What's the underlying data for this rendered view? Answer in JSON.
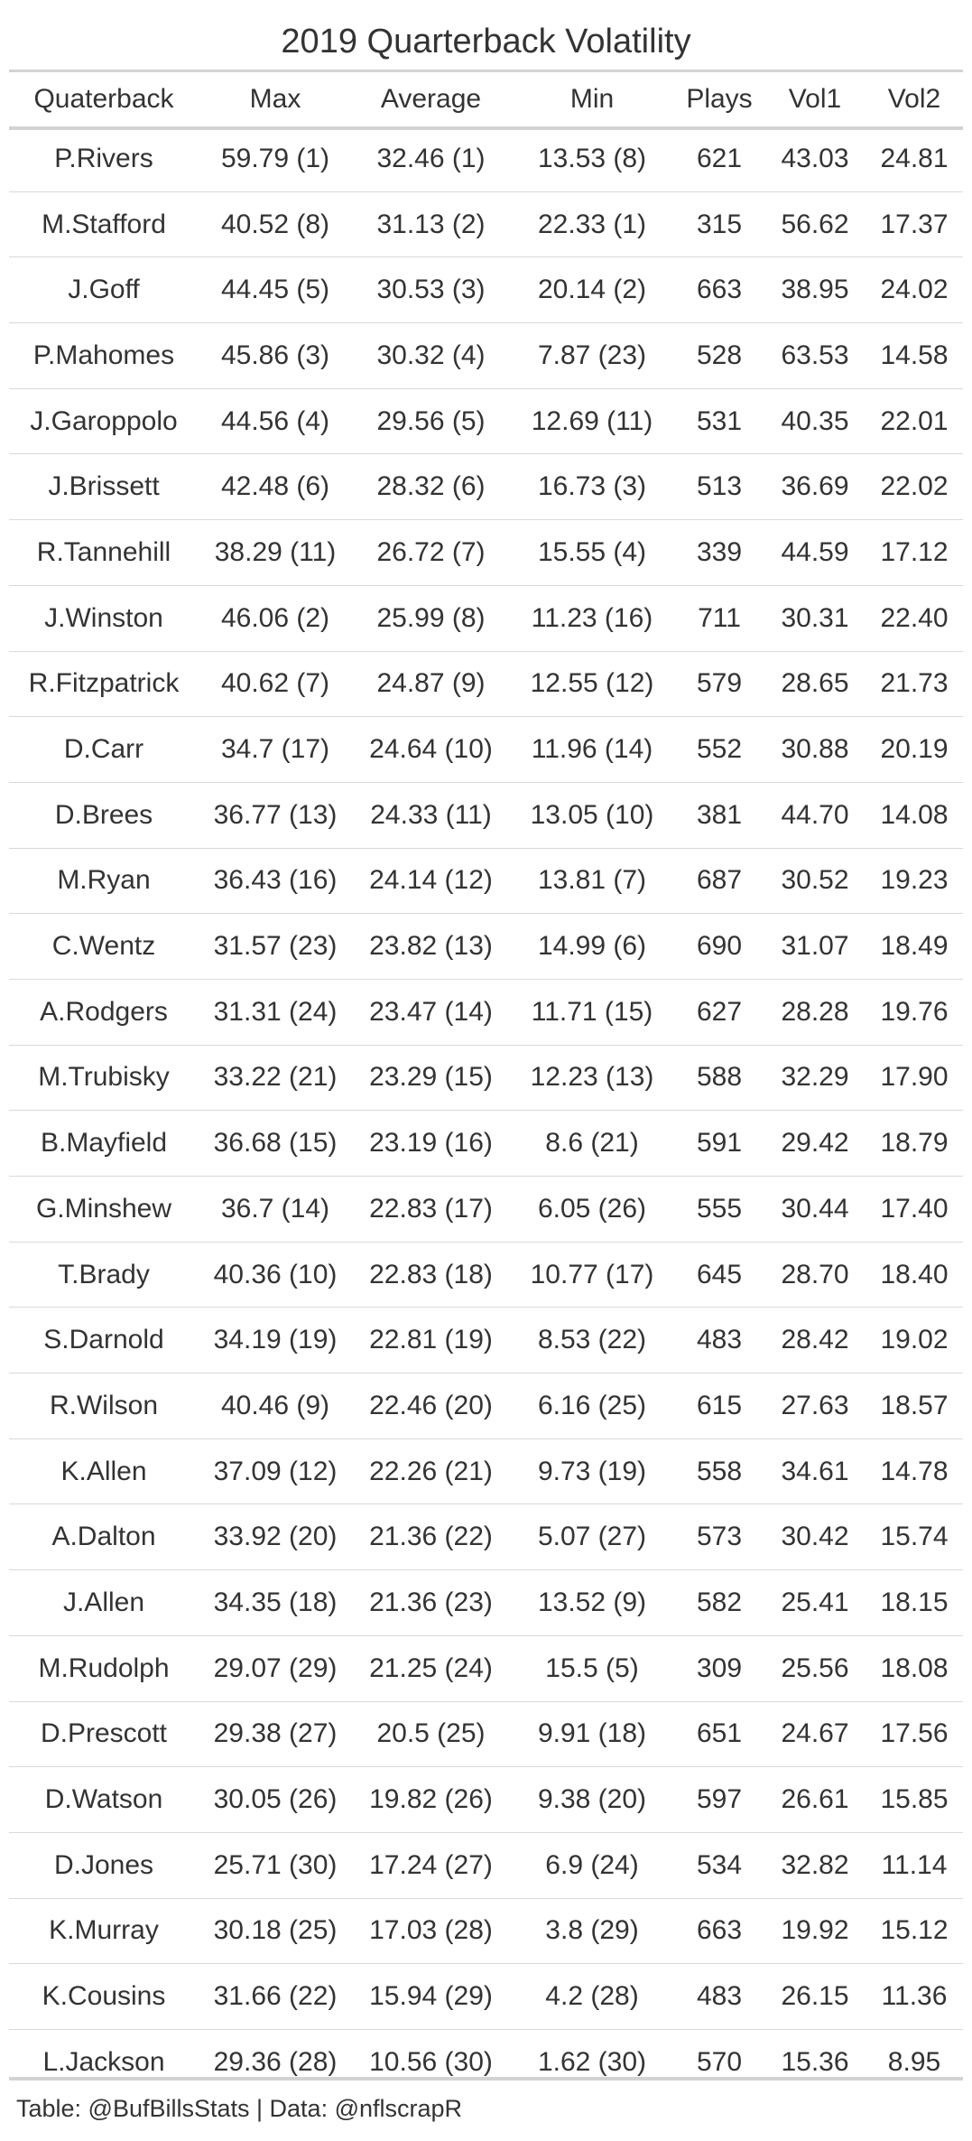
{
  "title": "2019 Quarterback Volatility",
  "columns": [
    "Quaterback",
    "Max",
    "Average",
    "Min",
    "Plays",
    "Vol1",
    "Vol2"
  ],
  "rows": [
    [
      "P.Rivers",
      "59.79 (1)",
      "32.46 (1)",
      "13.53 (8)",
      "621",
      "43.03",
      "24.81"
    ],
    [
      "M.Stafford",
      "40.52 (8)",
      "31.13 (2)",
      "22.33 (1)",
      "315",
      "56.62",
      "17.37"
    ],
    [
      "J.Goff",
      "44.45 (5)",
      "30.53 (3)",
      "20.14 (2)",
      "663",
      "38.95",
      "24.02"
    ],
    [
      "P.Mahomes",
      "45.86 (3)",
      "30.32 (4)",
      "7.87 (23)",
      "528",
      "63.53",
      "14.58"
    ],
    [
      "J.Garoppolo",
      "44.56 (4)",
      "29.56 (5)",
      "12.69 (11)",
      "531",
      "40.35",
      "22.01"
    ],
    [
      "J.Brissett",
      "42.48 (6)",
      "28.32 (6)",
      "16.73 (3)",
      "513",
      "36.69",
      "22.02"
    ],
    [
      "R.Tannehill",
      "38.29 (11)",
      "26.72 (7)",
      "15.55 (4)",
      "339",
      "44.59",
      "17.12"
    ],
    [
      "J.Winston",
      "46.06 (2)",
      "25.99 (8)",
      "11.23 (16)",
      "711",
      "30.31",
      "22.40"
    ],
    [
      "R.Fitzpatrick",
      "40.62 (7)",
      "24.87 (9)",
      "12.55 (12)",
      "579",
      "28.65",
      "21.73"
    ],
    [
      "D.Carr",
      "34.7 (17)",
      "24.64 (10)",
      "11.96 (14)",
      "552",
      "30.88",
      "20.19"
    ],
    [
      "D.Brees",
      "36.77 (13)",
      "24.33 (11)",
      "13.05 (10)",
      "381",
      "44.70",
      "14.08"
    ],
    [
      "M.Ryan",
      "36.43 (16)",
      "24.14 (12)",
      "13.81 (7)",
      "687",
      "30.52",
      "19.23"
    ],
    [
      "C.Wentz",
      "31.57 (23)",
      "23.82 (13)",
      "14.99 (6)",
      "690",
      "31.07",
      "18.49"
    ],
    [
      "A.Rodgers",
      "31.31 (24)",
      "23.47 (14)",
      "11.71 (15)",
      "627",
      "28.28",
      "19.76"
    ],
    [
      "M.Trubisky",
      "33.22 (21)",
      "23.29 (15)",
      "12.23 (13)",
      "588",
      "32.29",
      "17.90"
    ],
    [
      "B.Mayfield",
      "36.68 (15)",
      "23.19 (16)",
      "8.6 (21)",
      "591",
      "29.42",
      "18.79"
    ],
    [
      "G.Minshew",
      "36.7 (14)",
      "22.83 (17)",
      "6.05 (26)",
      "555",
      "30.44",
      "17.40"
    ],
    [
      "T.Brady",
      "40.36 (10)",
      "22.83 (18)",
      "10.77 (17)",
      "645",
      "28.70",
      "18.40"
    ],
    [
      "S.Darnold",
      "34.19 (19)",
      "22.81 (19)",
      "8.53 (22)",
      "483",
      "28.42",
      "19.02"
    ],
    [
      "R.Wilson",
      "40.46 (9)",
      "22.46 (20)",
      "6.16 (25)",
      "615",
      "27.63",
      "18.57"
    ],
    [
      "K.Allen",
      "37.09 (12)",
      "22.26 (21)",
      "9.73 (19)",
      "558",
      "34.61",
      "14.78"
    ],
    [
      "A.Dalton",
      "33.92 (20)",
      "21.36 (22)",
      "5.07 (27)",
      "573",
      "30.42",
      "15.74"
    ],
    [
      "J.Allen",
      "34.35 (18)",
      "21.36 (23)",
      "13.52 (9)",
      "582",
      "25.41",
      "18.15"
    ],
    [
      "M.Rudolph",
      "29.07 (29)",
      "21.25 (24)",
      "15.5 (5)",
      "309",
      "25.56",
      "18.08"
    ],
    [
      "D.Prescott",
      "29.38 (27)",
      "20.5 (25)",
      "9.91 (18)",
      "651",
      "24.67",
      "17.56"
    ],
    [
      "D.Watson",
      "30.05 (26)",
      "19.82 (26)",
      "9.38 (20)",
      "597",
      "26.61",
      "15.85"
    ],
    [
      "D.Jones",
      "25.71 (30)",
      "17.24 (27)",
      "6.9 (24)",
      "534",
      "32.82",
      "11.14"
    ],
    [
      "K.Murray",
      "30.18 (25)",
      "17.03 (28)",
      "3.8 (29)",
      "663",
      "19.92",
      "15.12"
    ],
    [
      "K.Cousins",
      "31.66 (22)",
      "15.94 (29)",
      "4.2 (28)",
      "483",
      "26.15",
      "11.36"
    ],
    [
      "L.Jackson",
      "29.36 (28)",
      "10.56 (30)",
      "1.62 (30)",
      "570",
      "15.36",
      "8.95"
    ]
  ],
  "source_note": "Table: @BufBillsStats | Data: @nflscrapR"
}
